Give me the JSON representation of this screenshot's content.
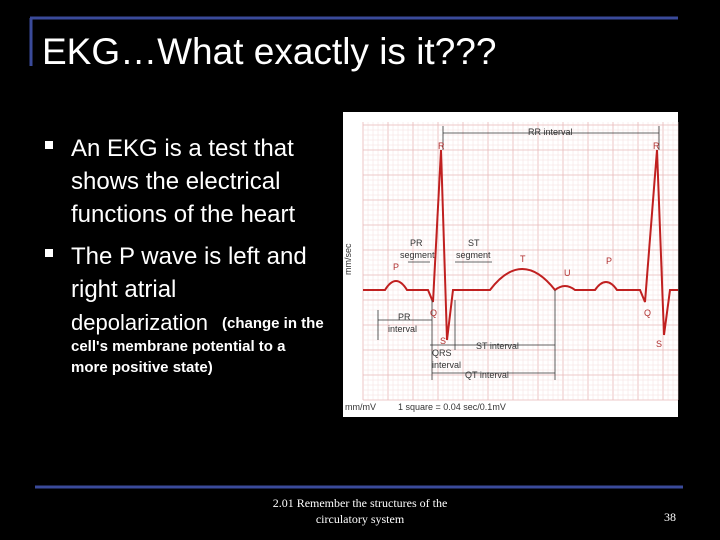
{
  "header": {
    "title": "EKG…What exactly is it???"
  },
  "bullets": [
    {
      "lines": [
        "An EKG is a test that",
        "shows the electrical",
        "functions of the heart"
      ]
    },
    {
      "lines": [
        "The P wave is left and",
        "right atrial"
      ],
      "lead": "depolarization",
      "detail": [
        "(change in the",
        "cell's membrane potential to a",
        "more positive state)"
      ]
    }
  ],
  "figure": {
    "labels": [
      "RR interval",
      "R",
      "R",
      "PR",
      "segment",
      "ST",
      "segment",
      "mm/sec",
      "T",
      "U",
      "P",
      "P",
      "PR",
      "interval",
      "Q",
      "S",
      "QRS",
      "interval",
      "ST interval",
      "QT interval",
      "Q",
      "S",
      "mm/mV",
      "1 square = 0.04 sec/0.1mV"
    ]
  },
  "footer": {
    "lines": [
      "2.01 Remember the structures of the",
      "circulatory system"
    ],
    "page": "38"
  }
}
